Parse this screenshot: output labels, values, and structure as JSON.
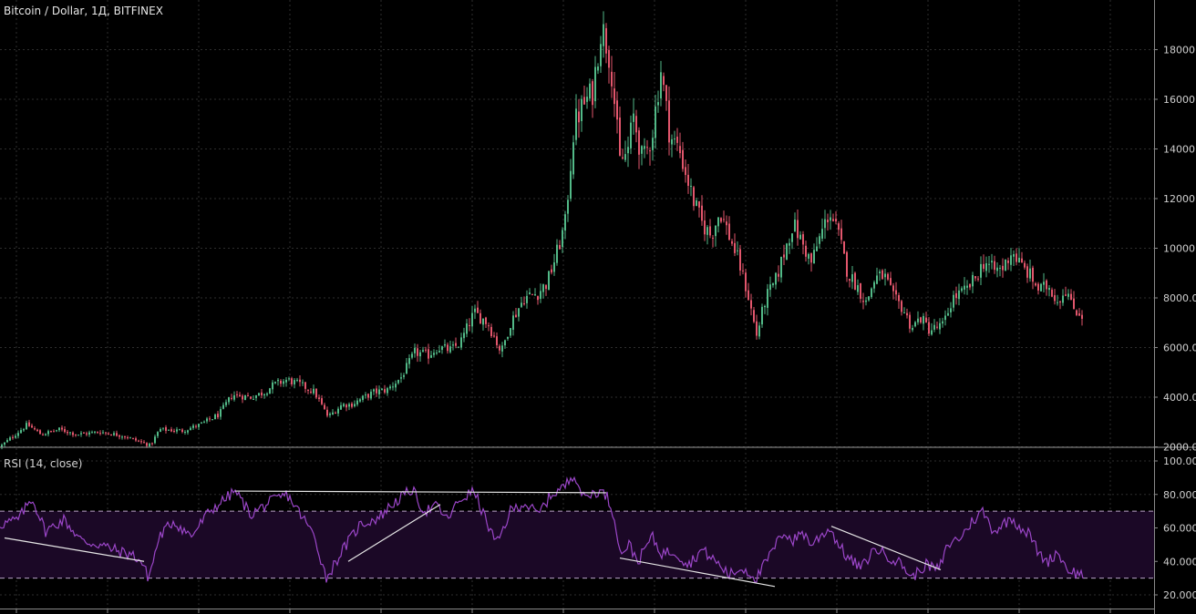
{
  "chart_data": [
    {
      "type": "candlestick",
      "title": "Bitcoin / Dollar, 1Д, BITFINEX",
      "ylim": [
        0,
        20000
      ],
      "yticks": [
        "2000.0",
        "4000.0",
        "6000.0",
        "8000.0",
        "10000.0",
        "12000.0",
        "14000.0",
        "16000.0",
        "18000.0"
      ],
      "grid": true,
      "colors": {
        "up": "#52b987",
        "down": "#e2566c",
        "background": "#000000",
        "grid": "#2e2e2e"
      },
      "keypoints": [
        [
          0,
          2000
        ],
        [
          20,
          2600
        ],
        [
          30,
          2900
        ],
        [
          45,
          2500
        ],
        [
          65,
          2700
        ],
        [
          85,
          2500
        ],
        [
          110,
          2600
        ],
        [
          135,
          2450
        ],
        [
          150,
          2250
        ],
        [
          165,
          2050
        ],
        [
          175,
          2700
        ],
        [
          200,
          2650
        ],
        [
          220,
          2900
        ],
        [
          240,
          3300
        ],
        [
          255,
          4100
        ],
        [
          275,
          4000
        ],
        [
          290,
          4200
        ],
        [
          300,
          4500
        ],
        [
          315,
          4700
        ],
        [
          330,
          4500
        ],
        [
          345,
          4200
        ],
        [
          360,
          3200
        ],
        [
          375,
          3700
        ],
        [
          385,
          3700
        ],
        [
          395,
          3900
        ],
        [
          410,
          4200
        ],
        [
          425,
          4300
        ],
        [
          440,
          4800
        ],
        [
          455,
          5800
        ],
        [
          470,
          5700
        ],
        [
          480,
          6000
        ],
        [
          495,
          5900
        ],
        [
          505,
          6200
        ],
        [
          520,
          7400
        ],
        [
          535,
          7000
        ],
        [
          545,
          6200
        ],
        [
          550,
          5800
        ],
        [
          560,
          7000
        ],
        [
          575,
          8000
        ],
        [
          590,
          8200
        ],
        [
          600,
          8600
        ],
        [
          610,
          9700
        ],
        [
          620,
          11000
        ],
        [
          630,
          15000
        ],
        [
          640,
          15800
        ],
        [
          650,
          16300
        ],
        [
          660,
          19000
        ],
        [
          670,
          17500
        ],
        [
          680,
          13500
        ],
        [
          688,
          13800
        ],
        [
          695,
          15300
        ],
        [
          705,
          13500
        ],
        [
          715,
          14500
        ],
        [
          725,
          17200
        ],
        [
          735,
          14500
        ],
        [
          745,
          14000
        ],
        [
          760,
          12000
        ],
        [
          770,
          11000
        ],
        [
          780,
          10500
        ],
        [
          790,
          11500
        ],
        [
          800,
          10500
        ],
        [
          810,
          9500
        ],
        [
          820,
          8200
        ],
        [
          830,
          6500
        ],
        [
          840,
          8000
        ],
        [
          850,
          8600
        ],
        [
          860,
          9800
        ],
        [
          870,
          11000
        ],
        [
          880,
          10200
        ],
        [
          890,
          9400
        ],
        [
          900,
          10500
        ],
        [
          910,
          11500
        ],
        [
          920,
          10500
        ],
        [
          930,
          9000
        ],
        [
          940,
          8500
        ],
        [
          950,
          7800
        ],
        [
          960,
          8800
        ],
        [
          970,
          8900
        ],
        [
          980,
          8000
        ],
        [
          990,
          7600
        ],
        [
          1000,
          6800
        ],
        [
          1010,
          7200
        ],
        [
          1020,
          6700
        ],
        [
          1035,
          6900
        ],
        [
          1045,
          8000
        ],
        [
          1060,
          8300
        ],
        [
          1070,
          8800
        ],
        [
          1080,
          9500
        ],
        [
          1090,
          9100
        ],
        [
          1100,
          9200
        ],
        [
          1110,
          9900
        ],
        [
          1120,
          9300
        ],
        [
          1130,
          8900
        ],
        [
          1140,
          8300
        ],
        [
          1150,
          8500
        ],
        [
          1160,
          7900
        ],
        [
          1170,
          8400
        ],
        [
          1175,
          7700
        ],
        [
          1180,
          7500
        ],
        [
          1188,
          7300
        ]
      ]
    },
    {
      "type": "line",
      "title": "RSI (14, close)",
      "ylim": [
        15,
        103
      ],
      "yticks": [
        "20.0000",
        "40.0000",
        "60.0000",
        "80.0000",
        "100.0000"
      ],
      "bands": [
        30,
        70
      ],
      "colors": {
        "line": "#9b46c8",
        "band_fill": "#1b0826",
        "band_line": "#b9a3c7",
        "trendline": "#e6e6e6"
      },
      "keypoints": [
        [
          0,
          62
        ],
        [
          20,
          65
        ],
        [
          35,
          78
        ],
        [
          50,
          58
        ],
        [
          70,
          65
        ],
        [
          90,
          52
        ],
        [
          110,
          50
        ],
        [
          130,
          46
        ],
        [
          145,
          44
        ],
        [
          155,
          40
        ],
        [
          163,
          30
        ],
        [
          175,
          55
        ],
        [
          190,
          64
        ],
        [
          210,
          55
        ],
        [
          230,
          70
        ],
        [
          258,
          82
        ],
        [
          275,
          68
        ],
        [
          295,
          75
        ],
        [
          315,
          80
        ],
        [
          330,
          68
        ],
        [
          345,
          55
        ],
        [
          358,
          30
        ],
        [
          375,
          46
        ],
        [
          395,
          62
        ],
        [
          415,
          66
        ],
        [
          430,
          74
        ],
        [
          452,
          83
        ],
        [
          465,
          70
        ],
        [
          480,
          73
        ],
        [
          490,
          65
        ],
        [
          505,
          77
        ],
        [
          520,
          82
        ],
        [
          535,
          62
        ],
        [
          545,
          50
        ],
        [
          560,
          70
        ],
        [
          575,
          75
        ],
        [
          590,
          68
        ],
        [
          605,
          80
        ],
        [
          620,
          85
        ],
        [
          630,
          93
        ],
        [
          640,
          78
        ],
        [
          655,
          82
        ],
        [
          665,
          80
        ],
        [
          675,
          65
        ],
        [
          680,
          45
        ],
        [
          690,
          50
        ],
        [
          700,
          40
        ],
        [
          715,
          55
        ],
        [
          725,
          45
        ],
        [
          740,
          46
        ],
        [
          755,
          38
        ],
        [
          770,
          47
        ],
        [
          785,
          40
        ],
        [
          800,
          32
        ],
        [
          815,
          36
        ],
        [
          830,
          30
        ],
        [
          845,
          44
        ],
        [
          860,
          58
        ],
        [
          870,
          52
        ],
        [
          880,
          58
        ],
        [
          890,
          50
        ],
        [
          900,
          55
        ],
        [
          910,
          60
        ],
        [
          920,
          50
        ],
        [
          930,
          42
        ],
        [
          945,
          36
        ],
        [
          960,
          48
        ],
        [
          975,
          43
        ],
        [
          990,
          38
        ],
        [
          1000,
          30
        ],
        [
          1015,
          38
        ],
        [
          1030,
          35
        ],
        [
          1040,
          50
        ],
        [
          1055,
          55
        ],
        [
          1065,
          63
        ],
        [
          1078,
          70
        ],
        [
          1090,
          58
        ],
        [
          1100,
          62
        ],
        [
          1110,
          66
        ],
        [
          1120,
          60
        ],
        [
          1130,
          56
        ],
        [
          1140,
          44
        ],
        [
          1150,
          40
        ],
        [
          1160,
          46
        ],
        [
          1170,
          36
        ],
        [
          1180,
          33
        ],
        [
          1188,
          32
        ]
      ],
      "trendlines": [
        [
          [
            5,
            54
          ],
          [
            158,
            40
          ]
        ],
        [
          [
            258,
            82
          ],
          [
            665,
            81
          ]
        ],
        [
          [
            382,
            40
          ],
          [
            483,
            74
          ]
        ],
        [
          [
            680,
            42
          ],
          [
            850,
            25
          ]
        ],
        [
          [
            912,
            61
          ],
          [
            1032,
            35
          ]
        ]
      ]
    }
  ]
}
